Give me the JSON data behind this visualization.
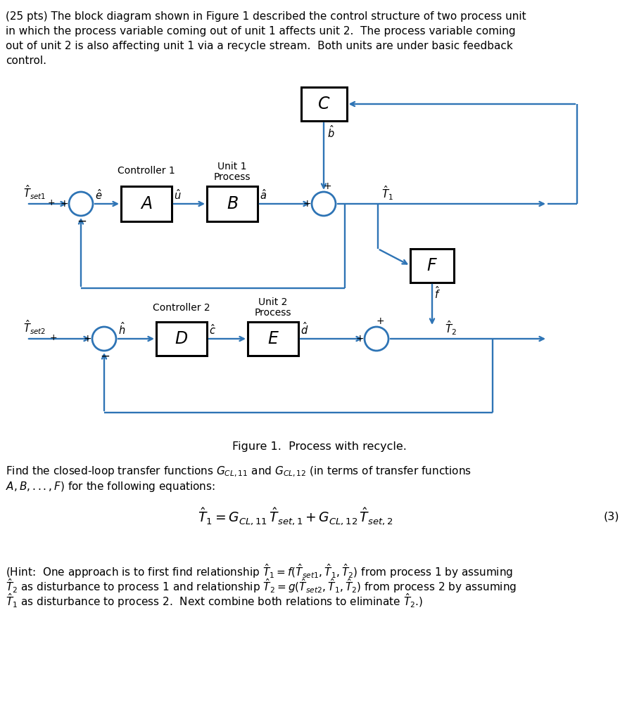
{
  "bg_color": "#ffffff",
  "text_color": "#000000",
  "blue": "#2E74B5",
  "para1": "(25 pts) The block diagram shown in Figure 1 described the control structure of two process unit\nin which the process variable coming out of unit 1 affects unit 2.  The process variable coming\nout of unit 2 is also affecting unit 1 via a recycle stream.  Both units are under basic feedback\ncontrol.",
  "figure_caption": "Figure 1.  Process with recycle.",
  "find_text1": "Find the closed-loop transfer functions $G_{CL,11}$ and $G_{CL,12}$ (in terms of transfer functions",
  "find_text2": "$A, B,..., F$) for the following equations:",
  "eq": "$\\hat{T}_1 = G_{CL,11}\\, \\hat{T}_{set,1} + G_{CL,12}\\, \\hat{T}_{set,2}$",
  "eq_num": "(3)",
  "hint1": "(Hint:  One approach is to first find relationship $\\hat{T}_1 = f(\\hat{T}_{set1}, \\hat{T}_1, \\hat{T}_2)$ from process 1 by assuming",
  "hint2": "$\\hat{T}_2$ as disturbance to process 1 and relationship $\\hat{T}_2 = g(\\hat{T}_{set2}, \\hat{T}_1, \\hat{T}_2)$ from process 2 by assuming",
  "hint3": "$\\hat{T}_1$ as disturbance to process 2.  Next combine both relations to eliminate $\\hat{T}_2$.)"
}
